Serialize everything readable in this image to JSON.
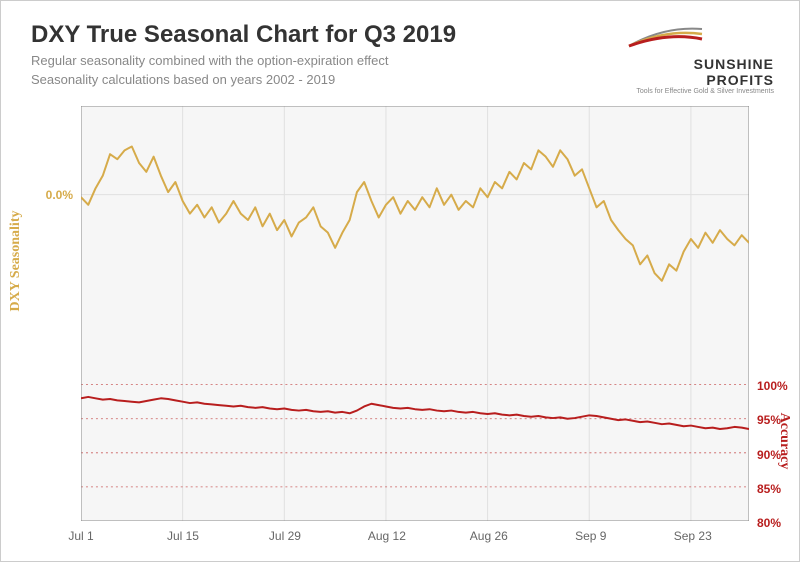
{
  "title": "DXY True Seasonal Chart for Q3 2019",
  "subtitle1": "Regular seasonality combined with the option-expiration effect",
  "subtitle2": "Seasonality calculations based on years 2002 - 2019",
  "logo": {
    "name": "SUNSHINE PROFITS",
    "tagline": "Tools for Effective Gold & Silver Investments"
  },
  "chart": {
    "type": "line-dual-axis",
    "background_color": "#ffffff",
    "plot_bg": "#f6f6f6",
    "grid_color": "#e0e0e0",
    "x": {
      "ticks": [
        "Jul 1",
        "Jul 15",
        "Jul 29",
        "Aug 12",
        "Aug 26",
        "Sep 9",
        "Sep 23"
      ],
      "tick_positions": [
        0,
        14,
        28,
        42,
        56,
        70,
        84
      ],
      "range": [
        0,
        92
      ]
    },
    "seasonality": {
      "label": "DXY Seasonality",
      "color": "#d6ab4a",
      "line_width": 2,
      "ylim": [
        -1.5,
        0.7
      ],
      "yticks": [
        0.0
      ],
      "ytick_labels": [
        "0.0%"
      ],
      "values": [
        -0.02,
        -0.08,
        0.05,
        0.15,
        0.32,
        0.28,
        0.35,
        0.38,
        0.25,
        0.18,
        0.3,
        0.15,
        0.02,
        0.1,
        -0.05,
        -0.15,
        -0.08,
        -0.18,
        -0.1,
        -0.22,
        -0.15,
        -0.05,
        -0.15,
        -0.2,
        -0.1,
        -0.25,
        -0.15,
        -0.28,
        -0.2,
        -0.33,
        -0.22,
        -0.18,
        -0.1,
        -0.25,
        -0.3,
        -0.42,
        -0.3,
        -0.2,
        0.02,
        0.1,
        -0.05,
        -0.18,
        -0.08,
        -0.02,
        -0.15,
        -0.05,
        -0.12,
        -0.02,
        -0.1,
        0.05,
        -0.08,
        0.0,
        -0.12,
        -0.05,
        -0.1,
        0.05,
        -0.02,
        0.1,
        0.05,
        0.18,
        0.12,
        0.25,
        0.2,
        0.35,
        0.3,
        0.22,
        0.35,
        0.28,
        0.15,
        0.2,
        0.05,
        -0.1,
        -0.05,
        -0.2,
        -0.28,
        -0.35,
        -0.4,
        -0.55,
        -0.48,
        -0.62,
        -0.68,
        -0.55,
        -0.6,
        -0.45,
        -0.35,
        -0.42,
        -0.3,
        -0.38,
        -0.28,
        -0.35,
        -0.4,
        -0.32,
        -0.38
      ]
    },
    "accuracy": {
      "label": "Accuracy",
      "color": "#b81e1e",
      "line_width": 2,
      "grid_color": "#b81e1e",
      "grid_dash": "2,3",
      "ylim": [
        80,
        100
      ],
      "yticks": [
        80,
        85,
        90,
        95,
        100
      ],
      "ytick_labels": [
        "80%",
        "85%",
        "90%",
        "95%",
        "100%"
      ],
      "values": [
        98.0,
        98.2,
        98.0,
        97.8,
        97.9,
        97.7,
        97.6,
        97.5,
        97.4,
        97.6,
        97.8,
        98.0,
        97.9,
        97.7,
        97.5,
        97.3,
        97.4,
        97.2,
        97.1,
        97.0,
        96.9,
        96.8,
        96.9,
        96.7,
        96.6,
        96.7,
        96.5,
        96.4,
        96.5,
        96.3,
        96.2,
        96.3,
        96.1,
        96.0,
        96.1,
        95.9,
        96.0,
        95.8,
        96.2,
        96.8,
        97.2,
        97.0,
        96.8,
        96.6,
        96.5,
        96.6,
        96.4,
        96.3,
        96.4,
        96.2,
        96.1,
        96.2,
        96.0,
        95.9,
        96.0,
        95.8,
        95.7,
        95.8,
        95.6,
        95.5,
        95.6,
        95.4,
        95.3,
        95.4,
        95.2,
        95.1,
        95.2,
        95.0,
        95.1,
        95.3,
        95.5,
        95.4,
        95.2,
        95.0,
        94.8,
        94.9,
        94.7,
        94.5,
        94.6,
        94.4,
        94.2,
        94.3,
        94.1,
        93.9,
        94.0,
        93.8,
        93.6,
        93.7,
        93.5,
        93.6,
        93.8,
        93.7,
        93.5
      ]
    }
  }
}
